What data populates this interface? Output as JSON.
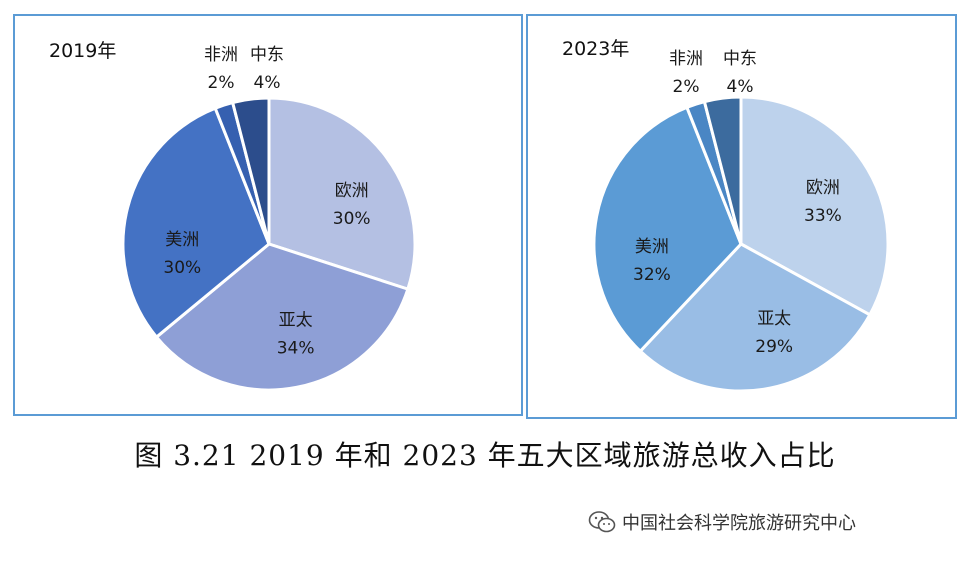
{
  "caption": "图 3.21 2019 年和 2023 年五大区域旅游总收入占比",
  "source": "中国社会科学院旅游研究中心",
  "chart_data": [
    {
      "type": "pie",
      "title": "2019年",
      "slices": [
        {
          "name": "欧洲",
          "value": 30,
          "label": "30%",
          "color": "#b4c0e3"
        },
        {
          "name": "亚太",
          "value": 34,
          "label": "34%",
          "color": "#8e9fd6"
        },
        {
          "name": "美洲",
          "value": 30,
          "label": "30%",
          "color": "#4472c4"
        },
        {
          "name": "非洲",
          "value": 2,
          "label": "2%",
          "color": "#3660b0"
        },
        {
          "name": "中东",
          "value": 4,
          "label": "4%",
          "color": "#2c4d8c"
        }
      ]
    },
    {
      "type": "pie",
      "title": "2023年",
      "slices": [
        {
          "name": "欧洲",
          "value": 33,
          "label": "33%",
          "color": "#bdd2ec"
        },
        {
          "name": "亚太",
          "value": 29,
          "label": "29%",
          "color": "#99bde5"
        },
        {
          "name": "美洲",
          "value": 32,
          "label": "32%",
          "color": "#5b9bd5"
        },
        {
          "name": "非洲",
          "value": 2,
          "label": "2%",
          "color": "#4a86c4"
        },
        {
          "name": "中东",
          "value": 4,
          "label": "4%",
          "color": "#3c6b9e"
        }
      ]
    }
  ]
}
